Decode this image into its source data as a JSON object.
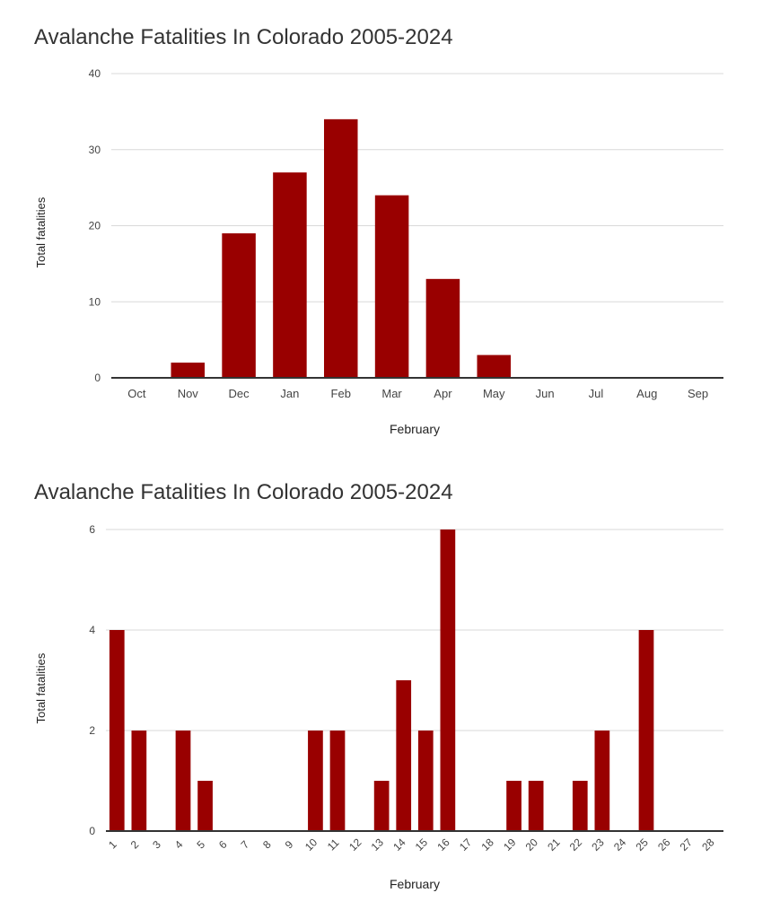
{
  "chart_data": [
    {
      "type": "bar",
      "title": "Avalanche Fatalities In Colorado 2005-2024",
      "xlabel": "February",
      "ylabel": "Total fatalities",
      "ylim": [
        0,
        40
      ],
      "yticks": [
        "0",
        "10",
        "20",
        "30",
        "40"
      ],
      "categories": [
        "Oct",
        "Nov",
        "Dec",
        "Jan",
        "Feb",
        "Mar",
        "Apr",
        "May",
        "Jun",
        "Jul",
        "Aug",
        "Sep"
      ],
      "values": [
        0,
        2,
        19,
        27,
        34,
        24,
        13,
        3,
        0,
        0,
        0,
        0
      ],
      "bar_color": "#990000",
      "grid": true
    },
    {
      "type": "bar",
      "title": "Avalanche Fatalities In Colorado 2005-2024",
      "xlabel": "February",
      "ylabel": "Total fatalities",
      "ylim": [
        0,
        6
      ],
      "yticks": [
        "0",
        "2",
        "4",
        "6"
      ],
      "categories": [
        "1",
        "2",
        "3",
        "4",
        "5",
        "6",
        "7",
        "8",
        "9",
        "10",
        "11",
        "12",
        "13",
        "14",
        "15",
        "16",
        "17",
        "18",
        "19",
        "20",
        "21",
        "22",
        "23",
        "24",
        "25",
        "26",
        "27",
        "28"
      ],
      "values": [
        4,
        2,
        0,
        2,
        1,
        0,
        0,
        0,
        0,
        2,
        2,
        0,
        1,
        3,
        2,
        6,
        0,
        0,
        1,
        1,
        0,
        1,
        2,
        0,
        4,
        0,
        0,
        0
      ],
      "bar_color": "#990000",
      "grid": true
    }
  ]
}
